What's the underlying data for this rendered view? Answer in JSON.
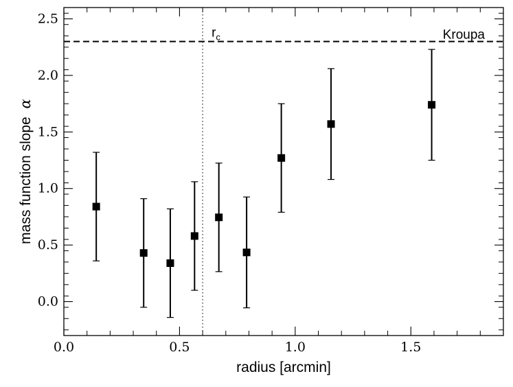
{
  "chart_data": {
    "type": "scatter",
    "xlabel": "radius [arcmin]",
    "ylabel": "mass function slope",
    "ylabel_symbol": "α",
    "xlim": [
      0.0,
      1.9
    ],
    "ylim": [
      -0.3,
      2.6
    ],
    "xticks": [
      0.0,
      0.5,
      1.0,
      1.5
    ],
    "xtick_labels": [
      "0.0",
      "0.5",
      "1.0",
      "1.5"
    ],
    "yticks": [
      0.0,
      0.5,
      1.0,
      1.5,
      2.0,
      2.5
    ],
    "ytick_labels": [
      "0.0",
      "0.5",
      "1.0",
      "1.5",
      "2.0",
      "2.5"
    ],
    "grid": false,
    "series": [
      {
        "marker": "square",
        "color": "#000000",
        "x": [
          0.14,
          0.345,
          0.46,
          0.565,
          0.67,
          0.79,
          0.94,
          1.155,
          1.59
        ],
        "y": [
          0.84,
          0.43,
          0.34,
          0.58,
          0.745,
          0.435,
          1.27,
          1.57,
          1.74
        ],
        "yerr": [
          0.48,
          0.48,
          0.48,
          0.48,
          0.48,
          0.49,
          0.48,
          0.49,
          0.49
        ]
      }
    ],
    "reference_lines": [
      {
        "orientation": "horizontal",
        "value": 2.3,
        "style": "dashed",
        "label": "Kroupa"
      },
      {
        "orientation": "vertical",
        "value": 0.6,
        "style": "dotted",
        "label_main": "r",
        "label_sub": "c"
      }
    ]
  }
}
